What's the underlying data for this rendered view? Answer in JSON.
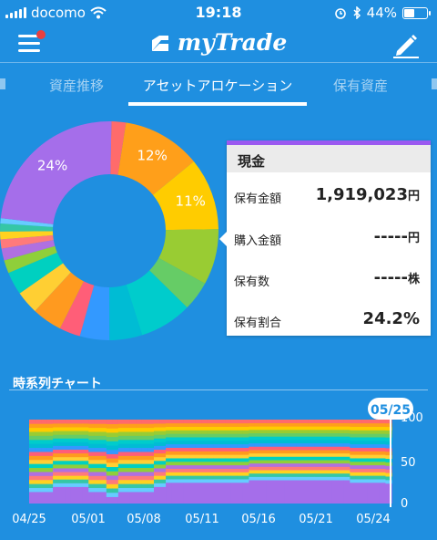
{
  "status": {
    "carrier": "docomo",
    "time": "19:18",
    "battery": "44%",
    "battery_level": 0.44
  },
  "header": {
    "app_title": "myTrade"
  },
  "tabs": [
    {
      "label": "資産推移",
      "active": false
    },
    {
      "label": "アセットアロケーション",
      "active": true
    },
    {
      "label": "保有資産",
      "active": false
    }
  ],
  "allocation": {
    "colors": [
      "#ff6b6b",
      "#ff9f1a",
      "#ffcc00",
      "#99cc33",
      "#66cc66",
      "#00cccc",
      "#00bcd4",
      "#3399ff",
      "#ff5e78",
      "#ff9a1f",
      "#ffcf33",
      "#00d0c0",
      "#8fcf3a",
      "#b070e0",
      "#ff7a7a",
      "#ffd21f",
      "#35c7a6",
      "#66ccff",
      "#a56eea"
    ],
    "shares": [
      2.2,
      12,
      11,
      8.5,
      4.5,
      8,
      5,
      4.5,
      3.2,
      4.6,
      3.5,
      3.5,
      2,
      1.8,
      1.4,
      1.2,
      1.2,
      0.8,
      24.2
    ],
    "labels": [
      {
        "text": "24%",
        "index": 18
      },
      {
        "text": "12%",
        "index": 1
      },
      {
        "text": "11%",
        "index": 2
      }
    ]
  },
  "detail": {
    "name": "現金",
    "rows": [
      {
        "label": "保有金額",
        "value": "1,919,023",
        "unit": "円"
      },
      {
        "label": "購入金額",
        "value": "-----",
        "unit": "円"
      },
      {
        "label": "保有数",
        "value": "-----",
        "unit": "株"
      },
      {
        "label": "保有割合",
        "value": "24.2%",
        "unit": ""
      }
    ]
  },
  "timeseries": {
    "title": "時系列チャート",
    "selected_label": "05/25",
    "x_labels": [
      "04/25",
      "05/01",
      "05/08",
      "05/11",
      "05/16",
      "05/21",
      "05/24"
    ],
    "y_labels": [
      "100",
      "50",
      "0"
    ],
    "chart_data": {
      "type": "area",
      "stacked_percent": true,
      "ylim": [
        0,
        100
      ],
      "yticks": [
        0,
        50,
        100
      ],
      "xlabels": [
        "04/25",
        "05/01",
        "05/08",
        "05/11",
        "05/16",
        "05/21",
        "05/24"
      ],
      "series_bottom_share": [
        14,
        14,
        14,
        14,
        20,
        20,
        20,
        20,
        20,
        20,
        14,
        14,
        14,
        8,
        8,
        14,
        14,
        14,
        14,
        14,
        14,
        20,
        20,
        25,
        25,
        25,
        25,
        25,
        25,
        25,
        25,
        25,
        25,
        25,
        25,
        25,
        25,
        28,
        28,
        28,
        28,
        28,
        28,
        28,
        28,
        28,
        28,
        28,
        28,
        28,
        28,
        28,
        28,
        28,
        25,
        25,
        25,
        25,
        25,
        25,
        24
      ],
      "colors": [
        "#a56eea",
        "#66ccff",
        "#35c7a6",
        "#ffd21f",
        "#ff7a7a",
        "#b070e0",
        "#8fcf3a",
        "#00d0c0",
        "#ffcf33",
        "#ff9a1f",
        "#ff5e78",
        "#3399ff",
        "#00bcd4",
        "#00cccc",
        "#66cc66",
        "#99cc33",
        "#ffcc00",
        "#ff9f1a",
        "#ff6b6b"
      ]
    }
  }
}
